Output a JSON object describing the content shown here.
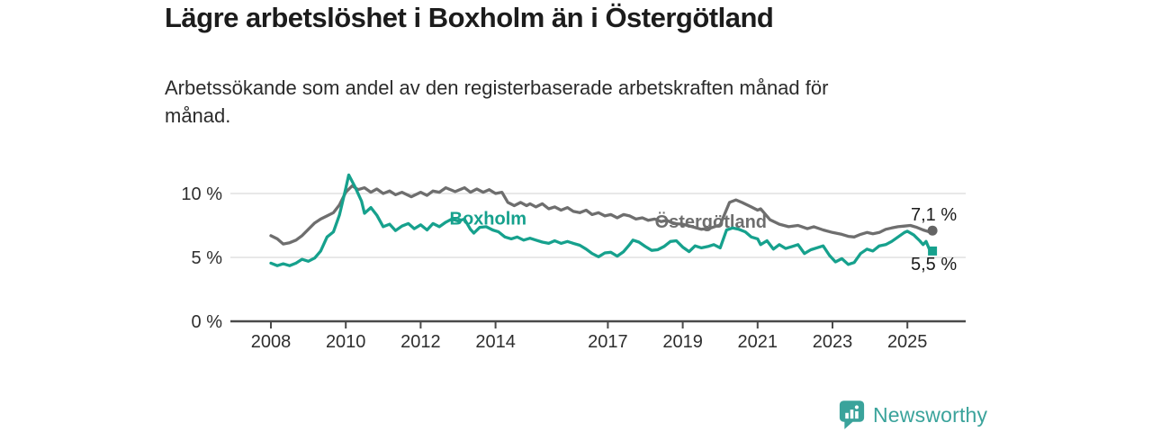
{
  "chart_data": {
    "type": "line",
    "title": "Lägre arbetslöshet i Boxholm än i Östergötland",
    "subtitle": "Arbetssökande som andel av den registerbaserade arbetskraften månad för\nmånad.",
    "x_axis": {
      "tick_values": [
        2008,
        2010,
        2012,
        2014,
        2017,
        2019,
        2021,
        2023,
        2025
      ],
      "tick_labels": [
        "2008",
        "2010",
        "2012",
        "2014",
        "2017",
        "2019",
        "2021",
        "2023",
        "2025"
      ],
      "range": [
        2006.9,
        2026.6
      ]
    },
    "y_axis": {
      "tick_values": [
        0,
        5,
        10
      ],
      "tick_labels": [
        "0 %",
        "5 %",
        "10 %"
      ],
      "range": [
        0,
        11.8
      ],
      "unit": "%",
      "grid": true
    },
    "legend_position": "inline-labels",
    "series": [
      {
        "name": "Östergötland",
        "color": "#6E6E6E",
        "end_label": "7,1 %",
        "end_value": 7.1,
        "end_marker": "circle",
        "label_at": {
          "x": 2019.75,
          "y": 7.8
        },
        "points": [
          [
            2008.0,
            6.7
          ],
          [
            2008.17,
            6.45
          ],
          [
            2008.33,
            6.05
          ],
          [
            2008.5,
            6.15
          ],
          [
            2008.67,
            6.35
          ],
          [
            2008.83,
            6.7
          ],
          [
            2009.0,
            7.2
          ],
          [
            2009.17,
            7.7
          ],
          [
            2009.33,
            8.0
          ],
          [
            2009.5,
            8.25
          ],
          [
            2009.67,
            8.5
          ],
          [
            2009.83,
            9.1
          ],
          [
            2010.0,
            10.1
          ],
          [
            2010.17,
            10.6
          ],
          [
            2010.33,
            10.3
          ],
          [
            2010.5,
            10.45
          ],
          [
            2010.67,
            10.1
          ],
          [
            2010.83,
            10.35
          ],
          [
            2011.0,
            10.0
          ],
          [
            2011.17,
            10.2
          ],
          [
            2011.33,
            9.9
          ],
          [
            2011.5,
            10.1
          ],
          [
            2011.75,
            9.75
          ],
          [
            2012.0,
            10.1
          ],
          [
            2012.17,
            9.85
          ],
          [
            2012.33,
            10.2
          ],
          [
            2012.5,
            10.1
          ],
          [
            2012.67,
            10.45
          ],
          [
            2012.92,
            10.15
          ],
          [
            2013.17,
            10.45
          ],
          [
            2013.33,
            10.1
          ],
          [
            2013.5,
            10.35
          ],
          [
            2013.67,
            10.1
          ],
          [
            2013.83,
            10.3
          ],
          [
            2014.0,
            10.0
          ],
          [
            2014.17,
            10.1
          ],
          [
            2014.33,
            9.3
          ],
          [
            2014.5,
            9.05
          ],
          [
            2014.67,
            9.3
          ],
          [
            2014.83,
            9.05
          ],
          [
            2014.92,
            9.2
          ],
          [
            2015.08,
            8.95
          ],
          [
            2015.25,
            9.2
          ],
          [
            2015.42,
            8.8
          ],
          [
            2015.58,
            8.95
          ],
          [
            2015.75,
            8.7
          ],
          [
            2015.92,
            8.9
          ],
          [
            2016.08,
            8.6
          ],
          [
            2016.25,
            8.5
          ],
          [
            2016.42,
            8.7
          ],
          [
            2016.58,
            8.35
          ],
          [
            2016.75,
            8.5
          ],
          [
            2016.92,
            8.25
          ],
          [
            2017.08,
            8.35
          ],
          [
            2017.25,
            8.1
          ],
          [
            2017.42,
            8.35
          ],
          [
            2017.58,
            8.25
          ],
          [
            2017.75,
            8.0
          ],
          [
            2017.92,
            8.1
          ],
          [
            2018.08,
            7.9
          ],
          [
            2018.25,
            8.0
          ],
          [
            2018.42,
            7.8
          ],
          [
            2018.58,
            7.9
          ],
          [
            2018.75,
            7.65
          ],
          [
            2019.0,
            7.6
          ],
          [
            2019.25,
            7.4
          ],
          [
            2019.5,
            7.2
          ],
          [
            2019.75,
            7.3
          ],
          [
            2020.0,
            7.55
          ],
          [
            2020.25,
            9.3
          ],
          [
            2020.42,
            9.5
          ],
          [
            2020.58,
            9.3
          ],
          [
            2020.83,
            8.95
          ],
          [
            2021.0,
            8.7
          ],
          [
            2021.08,
            8.8
          ],
          [
            2021.33,
            7.95
          ],
          [
            2021.58,
            7.6
          ],
          [
            2021.83,
            7.4
          ],
          [
            2022.08,
            7.5
          ],
          [
            2022.33,
            7.25
          ],
          [
            2022.5,
            7.4
          ],
          [
            2022.75,
            7.15
          ],
          [
            2023.0,
            6.95
          ],
          [
            2023.25,
            6.8
          ],
          [
            2023.42,
            6.65
          ],
          [
            2023.58,
            6.6
          ],
          [
            2023.75,
            6.8
          ],
          [
            2023.92,
            6.95
          ],
          [
            2024.08,
            6.85
          ],
          [
            2024.25,
            6.95
          ],
          [
            2024.42,
            7.2
          ],
          [
            2024.58,
            7.3
          ],
          [
            2024.75,
            7.4
          ],
          [
            2024.92,
            7.45
          ],
          [
            2025.08,
            7.5
          ],
          [
            2025.25,
            7.35
          ],
          [
            2025.42,
            7.15
          ],
          [
            2025.58,
            7.0
          ],
          [
            2025.67,
            7.1
          ]
        ]
      },
      {
        "name": "Boxholm",
        "color": "#16A18D",
        "end_label": "5,5 %",
        "end_value": 5.5,
        "end_marker": "square",
        "label_at": {
          "x": 2013.8,
          "y": 8.05
        },
        "points": [
          [
            2008.0,
            4.55
          ],
          [
            2008.17,
            4.35
          ],
          [
            2008.33,
            4.5
          ],
          [
            2008.5,
            4.35
          ],
          [
            2008.67,
            4.55
          ],
          [
            2008.83,
            4.85
          ],
          [
            2009.0,
            4.7
          ],
          [
            2009.17,
            4.95
          ],
          [
            2009.33,
            5.5
          ],
          [
            2009.5,
            6.6
          ],
          [
            2009.67,
            7.0
          ],
          [
            2009.83,
            8.3
          ],
          [
            2010.0,
            10.4
          ],
          [
            2010.08,
            11.45
          ],
          [
            2010.25,
            10.5
          ],
          [
            2010.42,
            9.4
          ],
          [
            2010.5,
            8.45
          ],
          [
            2010.67,
            8.9
          ],
          [
            2010.83,
            8.3
          ],
          [
            2011.0,
            7.4
          ],
          [
            2011.17,
            7.6
          ],
          [
            2011.33,
            7.1
          ],
          [
            2011.5,
            7.45
          ],
          [
            2011.67,
            7.65
          ],
          [
            2011.83,
            7.25
          ],
          [
            2012.0,
            7.55
          ],
          [
            2012.17,
            7.15
          ],
          [
            2012.33,
            7.65
          ],
          [
            2012.5,
            7.4
          ],
          [
            2012.67,
            7.75
          ],
          [
            2012.83,
            8.0
          ],
          [
            2013.0,
            7.85
          ],
          [
            2013.17,
            8.0
          ],
          [
            2013.33,
            7.2
          ],
          [
            2013.42,
            6.9
          ],
          [
            2013.58,
            7.35
          ],
          [
            2013.75,
            7.4
          ],
          [
            2013.92,
            7.15
          ],
          [
            2014.08,
            7.0
          ],
          [
            2014.25,
            6.6
          ],
          [
            2014.42,
            6.45
          ],
          [
            2014.58,
            6.6
          ],
          [
            2014.75,
            6.35
          ],
          [
            2014.92,
            6.5
          ],
          [
            2015.08,
            6.35
          ],
          [
            2015.25,
            6.2
          ],
          [
            2015.42,
            6.1
          ],
          [
            2015.58,
            6.3
          ],
          [
            2015.75,
            6.1
          ],
          [
            2015.92,
            6.25
          ],
          [
            2016.08,
            6.1
          ],
          [
            2016.25,
            5.95
          ],
          [
            2016.42,
            5.65
          ],
          [
            2016.58,
            5.3
          ],
          [
            2016.75,
            5.05
          ],
          [
            2016.92,
            5.35
          ],
          [
            2017.08,
            5.4
          ],
          [
            2017.25,
            5.1
          ],
          [
            2017.42,
            5.45
          ],
          [
            2017.58,
            6.0
          ],
          [
            2017.67,
            6.35
          ],
          [
            2017.83,
            6.2
          ],
          [
            2018.0,
            5.85
          ],
          [
            2018.17,
            5.55
          ],
          [
            2018.33,
            5.6
          ],
          [
            2018.5,
            5.85
          ],
          [
            2018.67,
            6.25
          ],
          [
            2018.83,
            6.3
          ],
          [
            2019.0,
            5.8
          ],
          [
            2019.17,
            5.45
          ],
          [
            2019.33,
            5.9
          ],
          [
            2019.5,
            5.75
          ],
          [
            2019.67,
            5.85
          ],
          [
            2019.83,
            6.0
          ],
          [
            2020.0,
            5.75
          ],
          [
            2020.17,
            7.15
          ],
          [
            2020.33,
            7.3
          ],
          [
            2020.5,
            7.2
          ],
          [
            2020.67,
            7.0
          ],
          [
            2020.83,
            6.6
          ],
          [
            2021.0,
            6.45
          ],
          [
            2021.08,
            6.0
          ],
          [
            2021.25,
            6.3
          ],
          [
            2021.42,
            5.65
          ],
          [
            2021.58,
            6.0
          ],
          [
            2021.75,
            5.7
          ],
          [
            2021.92,
            5.85
          ],
          [
            2022.08,
            6.0
          ],
          [
            2022.25,
            5.3
          ],
          [
            2022.42,
            5.6
          ],
          [
            2022.58,
            5.75
          ],
          [
            2022.75,
            5.9
          ],
          [
            2022.92,
            5.15
          ],
          [
            2023.08,
            4.65
          ],
          [
            2023.25,
            4.9
          ],
          [
            2023.42,
            4.45
          ],
          [
            2023.58,
            4.6
          ],
          [
            2023.75,
            5.3
          ],
          [
            2023.92,
            5.65
          ],
          [
            2024.08,
            5.5
          ],
          [
            2024.25,
            5.9
          ],
          [
            2024.42,
            6.0
          ],
          [
            2024.58,
            6.25
          ],
          [
            2024.75,
            6.6
          ],
          [
            2024.92,
            6.95
          ],
          [
            2025.0,
            7.05
          ],
          [
            2025.17,
            6.75
          ],
          [
            2025.33,
            6.3
          ],
          [
            2025.42,
            6.0
          ],
          [
            2025.5,
            6.25
          ],
          [
            2025.58,
            5.7
          ],
          [
            2025.67,
            5.5
          ]
        ]
      }
    ]
  },
  "footer": {
    "brand": "Newsworthy",
    "brand_color": "#3AA39B",
    "logo_icon": "bar-chart-speech-bubble-icon"
  }
}
